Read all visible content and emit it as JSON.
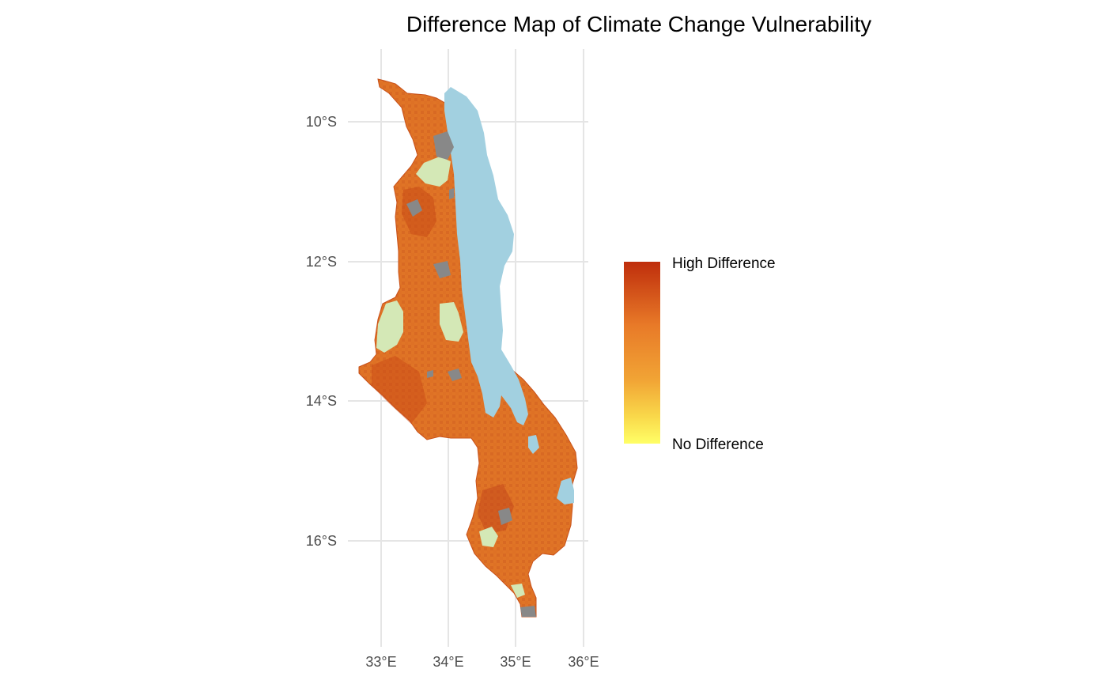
{
  "chart_data": {
    "type": "map",
    "title": "Difference Map of Climate Change Vulnerability",
    "xlabel": "",
    "ylabel": "",
    "x_ticks": [
      {
        "value": 33,
        "label": "33°E"
      },
      {
        "value": 34,
        "label": "34°E"
      },
      {
        "value": 35,
        "label": "35°E"
      },
      {
        "value": 36,
        "label": "36°E"
      }
    ],
    "y_ticks": [
      {
        "value": -10,
        "label": "10°S"
      },
      {
        "value": -12,
        "label": "12°S"
      },
      {
        "value": -14,
        "label": "14°S"
      },
      {
        "value": -16,
        "label": "16°S"
      }
    ],
    "xlim": [
      32.6,
      36.1
    ],
    "ylim": [
      -17.3,
      -9.3
    ],
    "grid": true,
    "legend": {
      "placement": "right",
      "high_label": "High Difference",
      "low_label": "No Difference",
      "colors": [
        "#bf2e0c",
        "#e87a28",
        "#f1a435",
        "#f9d84a",
        "#ffff66"
      ]
    },
    "colors": {
      "high": "#bf2e0c",
      "mid": "#e87a28",
      "low": "#ffff66",
      "lake": "#a2d0e0",
      "no_data": "#888888",
      "protected_area": "#d4e8b6"
    }
  }
}
